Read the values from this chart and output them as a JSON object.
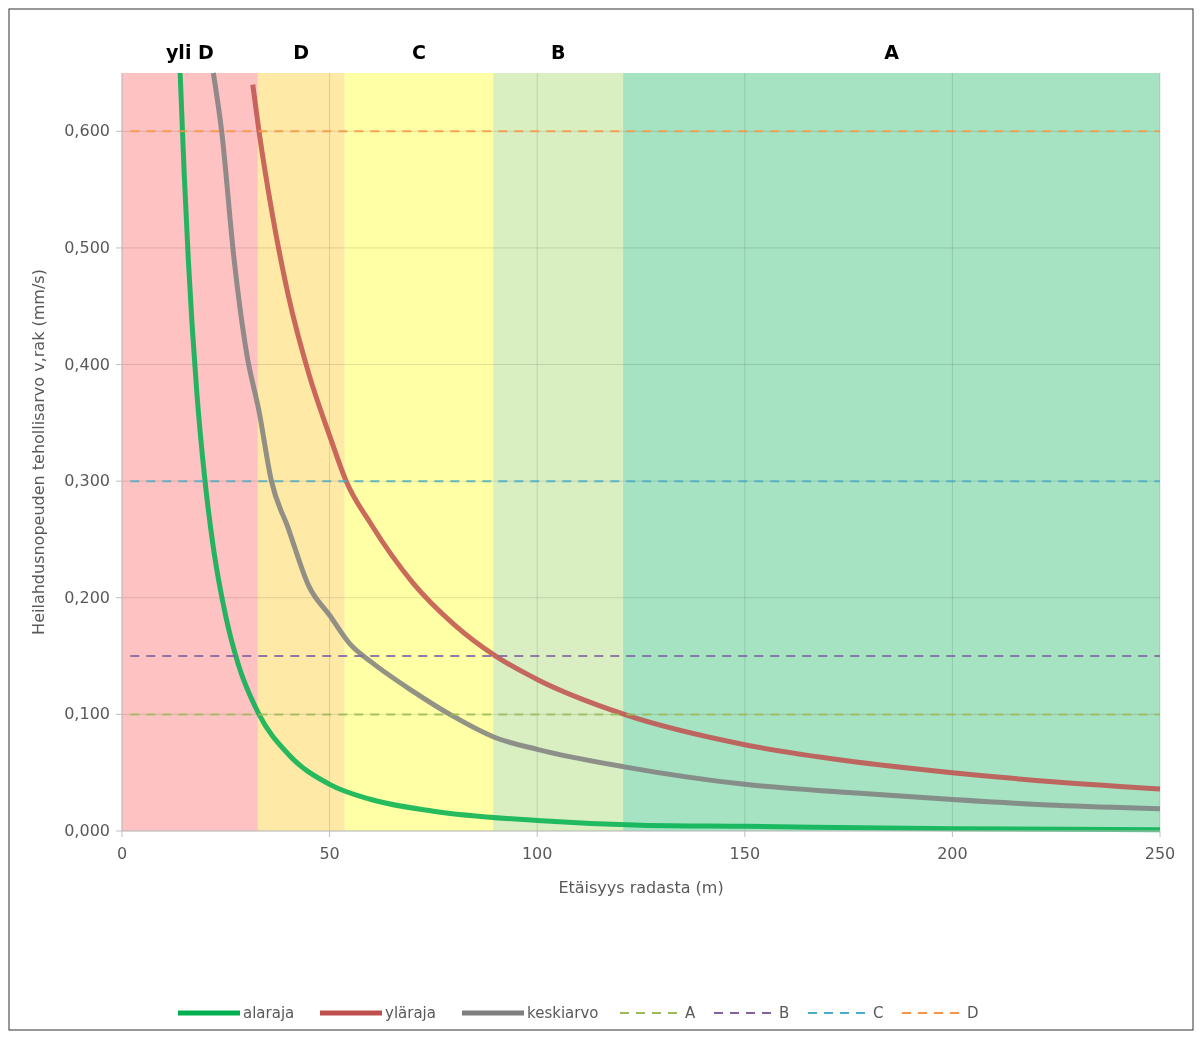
{
  "chart_data": {
    "type": "line",
    "xlabel": "Etäisyys radasta (m)",
    "ylabel": "Heilahdusnopeuden tehollisarvo v,rak (mm/s)",
    "xlim": [
      0,
      250
    ],
    "xticks": [
      0,
      50,
      100,
      150,
      200,
      250
    ],
    "ylim": [
      0,
      0.65
    ],
    "yticks": [
      {
        "value": 0,
        "label": "0,000"
      },
      {
        "value": 0.1,
        "label": "0,100"
      },
      {
        "value": 0.2,
        "label": "0,200"
      },
      {
        "value": 0.3,
        "label": "0,300"
      },
      {
        "value": 0.4,
        "label": "0,400"
      },
      {
        "value": 0.5,
        "label": "0,500"
      },
      {
        "value": 0.6,
        "label": "0,600"
      }
    ],
    "grid": true,
    "legend": "bottom",
    "line_style": "solid",
    "bands": [
      {
        "axis": "x",
        "from": 0,
        "to": 32.7,
        "label": "yli D",
        "color": "#ff5050"
      },
      {
        "axis": "x",
        "from": 32.7,
        "to": 53.6,
        "label": "D",
        "color": "#ffc000"
      },
      {
        "axis": "x",
        "from": 53.6,
        "to": 89.4,
        "label": "C",
        "color": "#ffff00"
      },
      {
        "axis": "x",
        "from": 89.4,
        "to": 120.7,
        "label": "B",
        "color": "#92d050"
      },
      {
        "axis": "x",
        "from": 120.7,
        "to": 250,
        "label": "A",
        "color": "#00b050"
      }
    ],
    "series": [
      {
        "name": "alaraja",
        "color": "#00b050",
        "x": [
          14,
          15,
          16,
          18,
          20,
          22,
          25,
          28,
          33,
          40,
          50,
          60,
          75,
          100,
          125,
          150,
          200,
          250
        ],
        "values": [
          0.65,
          0.562,
          0.488,
          0.377,
          0.3,
          0.243,
          0.184,
          0.143,
          0.1,
          0.066,
          0.04,
          0.027,
          0.017,
          0.009,
          0.005,
          0.004,
          0.002,
          0.001
        ]
      },
      {
        "name": "yläraja",
        "color": "#c0504d",
        "x": [
          31.5,
          33,
          36,
          40,
          45,
          50,
          54,
          60,
          70,
          80,
          90,
          100,
          121,
          150,
          175,
          200,
          225,
          250
        ],
        "values": [
          0.64,
          0.6,
          0.533,
          0.46,
          0.392,
          0.339,
          0.3,
          0.263,
          0.213,
          0.177,
          0.15,
          0.13,
          0.1,
          0.074,
          0.06,
          0.05,
          0.042,
          0.036
        ]
      },
      {
        "name": "keskiarvo",
        "color": "#7f7f7f",
        "x": [
          22,
          24,
          27,
          30,
          33,
          36,
          40,
          45,
          50,
          55,
          60,
          70,
          79,
          90,
          100,
          121,
          150,
          175,
          200,
          225,
          250
        ],
        "values": [
          0.65,
          0.6,
          0.49,
          0.41,
          0.36,
          0.3,
          0.26,
          0.21,
          0.185,
          0.16,
          0.145,
          0.12,
          0.1,
          0.08,
          0.07,
          0.055,
          0.04,
          0.033,
          0.027,
          0.022,
          0.019
        ]
      },
      {
        "name": "A",
        "color": "#9bbb59",
        "line_style": "dashed",
        "x": [
          2,
          250
        ],
        "values": [
          0.1,
          0.1
        ]
      },
      {
        "name": "B",
        "color": "#8064a2",
        "line_style": "dashed",
        "x": [
          2,
          250
        ],
        "values": [
          0.15,
          0.15
        ]
      },
      {
        "name": "C",
        "color": "#4bacc6",
        "line_style": "dashed",
        "x": [
          2,
          250
        ],
        "values": [
          0.3,
          0.3
        ]
      },
      {
        "name": "D",
        "color": "#f79646",
        "line_style": "dashed",
        "x": [
          2,
          250
        ],
        "values": [
          0.6,
          0.6
        ]
      }
    ]
  }
}
